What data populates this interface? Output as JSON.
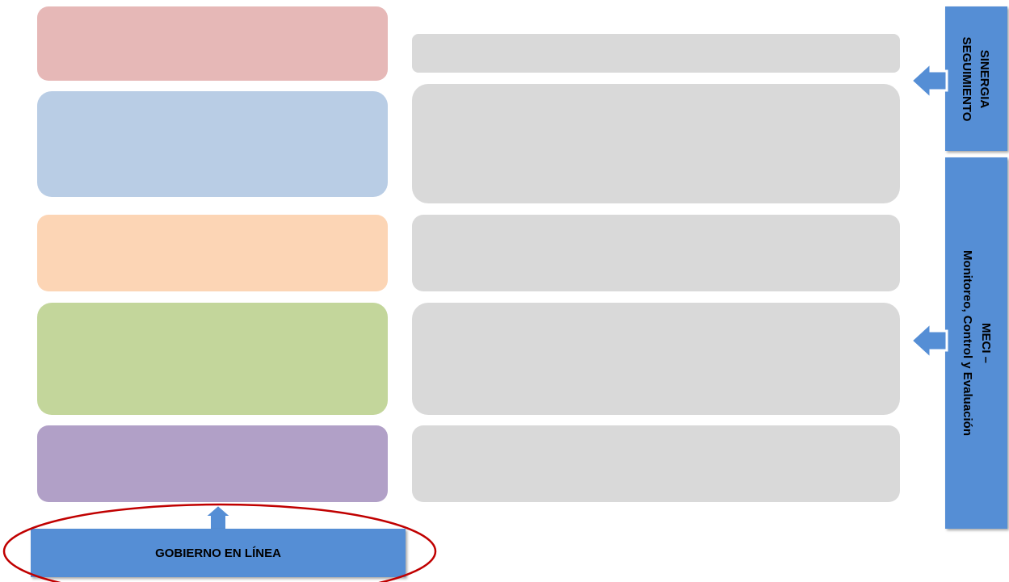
{
  "panels": [
    {
      "lines": [
        "SINERGIA",
        "SEGUIMIENTO"
      ]
    },
    {
      "lines": [
        "MECI –",
        "Monitoreo,  Control  y Evaluación"
      ]
    }
  ],
  "bottom": {
    "label": "GOBIERNO EN LÍNEA"
  }
}
